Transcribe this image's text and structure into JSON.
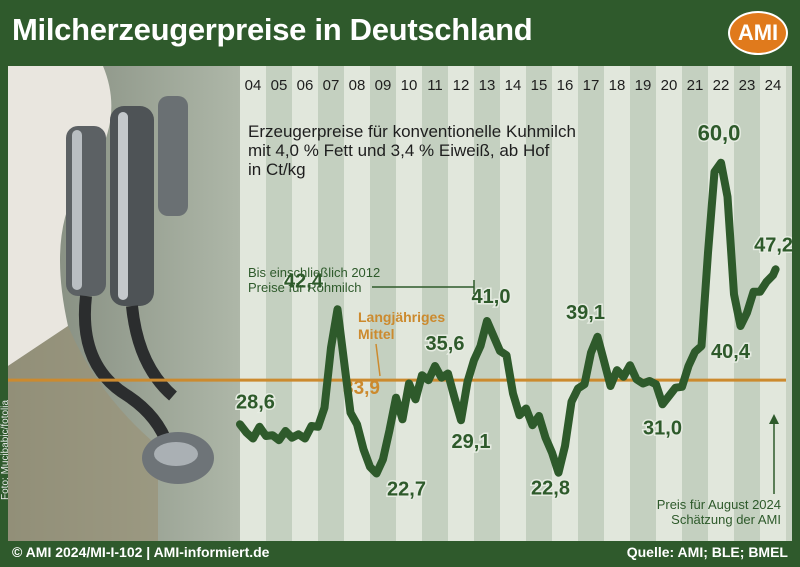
{
  "header": {
    "title": "Milcherzeugerpreise in Deutschland",
    "logo_text": "AMI"
  },
  "footer": {
    "copyright": "© AMI 2024/MI-I-102 | AMI-informiert.de",
    "source": "Quelle: AMI; BLE; BMEL"
  },
  "photo_credit": "Foto: Mucibabic/fotolia",
  "colors": {
    "frame": "#2f5a2c",
    "line": "#2e5a2b",
    "band_light": "#e6ece2",
    "band_dark": "#c3cfbf",
    "average_line": "#cc8a2e",
    "logo": "#e07a1c"
  },
  "chart_data": {
    "type": "line",
    "title": "Erzeugerpreise für konventionelle Kuhmilch",
    "subtitle_lines": [
      "mit 4,0 % Fett und 3,4 % Eiweiß, ab Hof",
      "in Ct/kg"
    ],
    "x_tick_labels": [
      "04",
      "05",
      "06",
      "07",
      "08",
      "09",
      "10",
      "11",
      "12",
      "13",
      "14",
      "15",
      "16",
      "17",
      "18",
      "19",
      "20",
      "21",
      "22",
      "23",
      "24"
    ],
    "ylim": [
      17,
      65
    ],
    "grid": false,
    "x": [
      2004.0,
      2004.25,
      2004.5,
      2004.75,
      2005.0,
      2005.25,
      2005.5,
      2005.75,
      2006.0,
      2006.25,
      2006.5,
      2006.75,
      2007.0,
      2007.25,
      2007.5,
      2007.75,
      2008.0,
      2008.25,
      2008.5,
      2008.75,
      2009.0,
      2009.25,
      2009.5,
      2009.75,
      2010.0,
      2010.25,
      2010.5,
      2010.75,
      2011.0,
      2011.25,
      2011.5,
      2011.75,
      2012.0,
      2012.25,
      2012.5,
      2012.75,
      2013.0,
      2013.25,
      2013.5,
      2013.75,
      2014.0,
      2014.25,
      2014.5,
      2014.75,
      2015.0,
      2015.25,
      2015.5,
      2015.75,
      2016.0,
      2016.25,
      2016.5,
      2016.75,
      2017.0,
      2017.25,
      2017.5,
      2017.75,
      2018.0,
      2018.25,
      2018.5,
      2018.75,
      2019.0,
      2019.25,
      2019.5,
      2019.75,
      2020.0,
      2020.25,
      2020.5,
      2020.75,
      2021.0,
      2021.25,
      2021.5,
      2021.75,
      2022.0,
      2022.25,
      2022.5,
      2022.75,
      2023.0,
      2023.25,
      2023.5,
      2023.75,
      2024.0,
      2024.25,
      2024.5,
      2024.6
    ],
    "series": [
      {
        "values": [
          28.6,
          27.6,
          26.9,
          28.3,
          27.2,
          27.3,
          26.7,
          27.8,
          27.0,
          27.4,
          26.9,
          28.4,
          28.3,
          30.6,
          37.8,
          42.4,
          36.2,
          30.0,
          28.6,
          25.6,
          23.5,
          22.7,
          24.4,
          27.9,
          31.8,
          29.2,
          33.5,
          31.6,
          34.5,
          33.9,
          35.6,
          34.2,
          34.7,
          31.8,
          29.1,
          33.7,
          36.3,
          38.0,
          41.0,
          39.2,
          37.4,
          36.9,
          32.3,
          29.7,
          30.5,
          28.5,
          29.6,
          27.0,
          25.2,
          22.8,
          26.0,
          31.3,
          32.9,
          33.4,
          37.2,
          39.1,
          36.2,
          33.2,
          35.1,
          34.3,
          35.7,
          34.0,
          33.5,
          33.8,
          33.4,
          31.0,
          32.0,
          33.0,
          33.1,
          35.6,
          37.3,
          38.0,
          49.2,
          58.9,
          60.0,
          55.9,
          44.2,
          40.4,
          42.0,
          44.5,
          44.5,
          45.7,
          46.5,
          47.2
        ]
      }
    ],
    "average": {
      "value": 33.9,
      "label_lines": [
        "Langjähriges",
        "Mittel"
      ],
      "value_label": "33,9"
    },
    "data_labels": [
      {
        "x": 2004.0,
        "y": 28.6,
        "text": "28,6"
      },
      {
        "x": 2007.75,
        "y": 42.4,
        "text": "42,4"
      },
      {
        "x": 2009.25,
        "y": 22.7,
        "text": "22,7"
      },
      {
        "x": 2011.5,
        "y": 35.6,
        "text": "35,6"
      },
      {
        "x": 2012.5,
        "y": 29.1,
        "text": "29,1"
      },
      {
        "x": 2013.5,
        "y": 41.0,
        "text": "41,0"
      },
      {
        "x": 2016.25,
        "y": 22.8,
        "text": "22,8"
      },
      {
        "x": 2017.75,
        "y": 39.1,
        "text": "39,1"
      },
      {
        "x": 2020.25,
        "y": 31.0,
        "text": "31,0"
      },
      {
        "x": 2022.5,
        "y": 60.0,
        "text": "60,0"
      },
      {
        "x": 2023.25,
        "y": 40.4,
        "text": "40,4"
      },
      {
        "x": 2024.6,
        "y": 47.2,
        "text": "47,2"
      }
    ],
    "annotations": {
      "raw_milk_lines": [
        "Bis einschließlich 2012",
        "Preise für Rohmilch"
      ],
      "estimate_lines": [
        "Preis für August 2024",
        "Schätzung der AMI"
      ]
    }
  }
}
